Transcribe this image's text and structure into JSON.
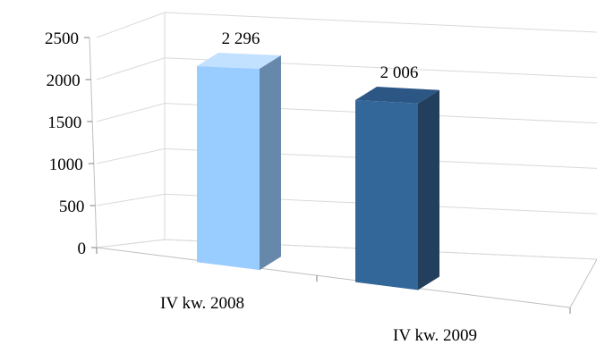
{
  "chart_data": {
    "type": "bar",
    "title": "",
    "xlabel": "",
    "ylabel": "",
    "categories": [
      "IV kw. 2008",
      "IV kw. 2009"
    ],
    "values": [
      2296,
      2006
    ],
    "data_labels": [
      "2 296",
      "2 006"
    ],
    "ylim": [
      0,
      2500
    ],
    "yticks": [
      0,
      500,
      1000,
      1500,
      2000,
      2500
    ],
    "ytick_labels": [
      "0",
      "500",
      "1000",
      "1500",
      "2000",
      "2500"
    ],
    "grid": true,
    "style": "3d-column",
    "legend": "none",
    "colors": {
      "bar_front": [
        "#99ccff",
        "#336699"
      ],
      "bar_side": [
        "#6688aa",
        "#223f5e"
      ],
      "bar_top": [
        "#c2e0ff",
        "#2c5785"
      ]
    }
  }
}
